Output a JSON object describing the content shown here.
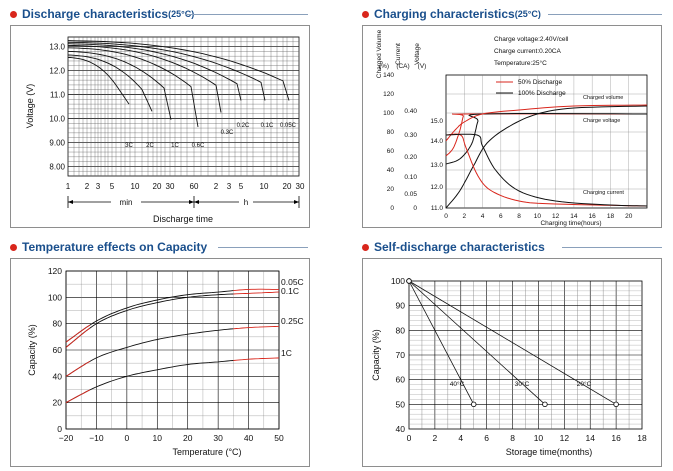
{
  "colors": {
    "title": "#1a4f8c",
    "dot": "#d9261c",
    "red": "#d9261c",
    "black": "#111111",
    "grid": "#000000"
  },
  "panels": {
    "discharge": {
      "title": "Discharge characteristics",
      "title_sup": "(25°C)"
    },
    "charging": {
      "title": "Charging characteristics",
      "title_sup": "(25°C)"
    },
    "temperature": {
      "title": "Temperature effects on Capacity"
    },
    "selfdischarge": {
      "title": "Self-discharge characteristics"
    }
  },
  "chart_data": [
    {
      "id": "discharge",
      "type": "line",
      "title": "Discharge characteristics(25°C)",
      "ylabel": "Voltage (V)",
      "xlabel": "Discharge time",
      "ylim": [
        8.0,
        13.2
      ],
      "yticks": [
        "13.0",
        "12.0",
        "11.0",
        "10.0",
        "9.00",
        "8.00"
      ],
      "xticks": [
        "1",
        "2",
        "3",
        "5",
        "10",
        "20",
        "30",
        "60",
        "2",
        "3",
        "5",
        "10",
        "20",
        "30"
      ],
      "x_groups": [
        "min",
        "h"
      ],
      "series": [
        {
          "name": "3C",
          "label": "3C"
        },
        {
          "name": "2C",
          "label": "2C"
        },
        {
          "name": "1C",
          "label": "1C"
        },
        {
          "name": "0.6C",
          "label": "0.6C"
        },
        {
          "name": "0.3C",
          "label": "0.3C"
        },
        {
          "name": "0.2C",
          "label": "0.2C"
        },
        {
          "name": "0.1C",
          "label": "0.1C"
        },
        {
          "name": "0.05C",
          "label": "0.05C"
        }
      ]
    },
    {
      "id": "charging",
      "type": "line",
      "title": "Charging characteristics(25°C)",
      "left_axes": [
        {
          "name": "Charged Volume",
          "unit": "(%)",
          "ticks": [
            "140",
            "120",
            "100",
            "80",
            "60",
            "40",
            "20",
            "0"
          ]
        },
        {
          "name": "Current",
          "unit": "(CA)",
          "ticks": [
            "0.40",
            "0.30",
            "0.20",
            "0.10",
            "0.05",
            "0"
          ]
        },
        {
          "name": "Voltage",
          "unit": "(V)",
          "ticks": [
            "15.0",
            "14.0",
            "13.0",
            "12.0",
            "11.0"
          ]
        }
      ],
      "xlabel": "Charging time(hours)",
      "xticks": [
        "0",
        "2",
        "4",
        "6",
        "8",
        "10",
        "12",
        "14",
        "16",
        "18",
        "20"
      ],
      "annotations": [
        "Charge voltage:2.40V/cell",
        "Charge current:0.20CA",
        "Temperature:25°C"
      ],
      "legend": [
        "50% Discharge",
        "100% Discharge"
      ],
      "curve_labels": [
        "Charged volume",
        "Charge voltage",
        "Charging current"
      ]
    },
    {
      "id": "temperature",
      "type": "line",
      "title": "Temperature effects on Capacity",
      "ylabel": "Capacity (%)",
      "xlabel": "Temperature (°C)",
      "xlim": [
        -20,
        50
      ],
      "ylim": [
        0,
        120
      ],
      "xticks": [
        "−20",
        "−10",
        "0",
        "10",
        "20",
        "30",
        "40",
        "50"
      ],
      "yticks": [
        "120",
        "100",
        "80",
        "60",
        "40",
        "20",
        "0"
      ],
      "x": [
        -20,
        -10,
        0,
        10,
        20,
        30,
        40,
        50
      ],
      "series": [
        {
          "name": "0.05C",
          "values": [
            66,
            82,
            92,
            98,
            102,
            104,
            106,
            106
          ]
        },
        {
          "name": "0.1C",
          "values": [
            62,
            80,
            90,
            96,
            100,
            102,
            103,
            104
          ]
        },
        {
          "name": "0.25C",
          "values": [
            40,
            54,
            62,
            68,
            72,
            75,
            77,
            78
          ]
        },
        {
          "name": "1C",
          "values": [
            20,
            32,
            40,
            45,
            49,
            51,
            53,
            54
          ]
        }
      ]
    },
    {
      "id": "selfdischarge",
      "type": "line",
      "title": "Self-discharge characteristics",
      "ylabel": "Capacity (%)",
      "xlabel": "Storage time(months)",
      "xlim": [
        0,
        18
      ],
      "ylim": [
        40,
        100
      ],
      "xticks": [
        "0",
        "2",
        "4",
        "6",
        "8",
        "10",
        "12",
        "14",
        "16",
        "18"
      ],
      "yticks": [
        "100",
        "90",
        "80",
        "70",
        "60",
        "50",
        "40"
      ],
      "series": [
        {
          "name": "40°C",
          "x": [
            0,
            5
          ],
          "values": [
            100,
            50
          ]
        },
        {
          "name": "30°C",
          "x": [
            0,
            10.5
          ],
          "values": [
            100,
            50
          ]
        },
        {
          "name": "20°C",
          "x": [
            0,
            16
          ],
          "values": [
            100,
            50
          ]
        }
      ]
    }
  ]
}
